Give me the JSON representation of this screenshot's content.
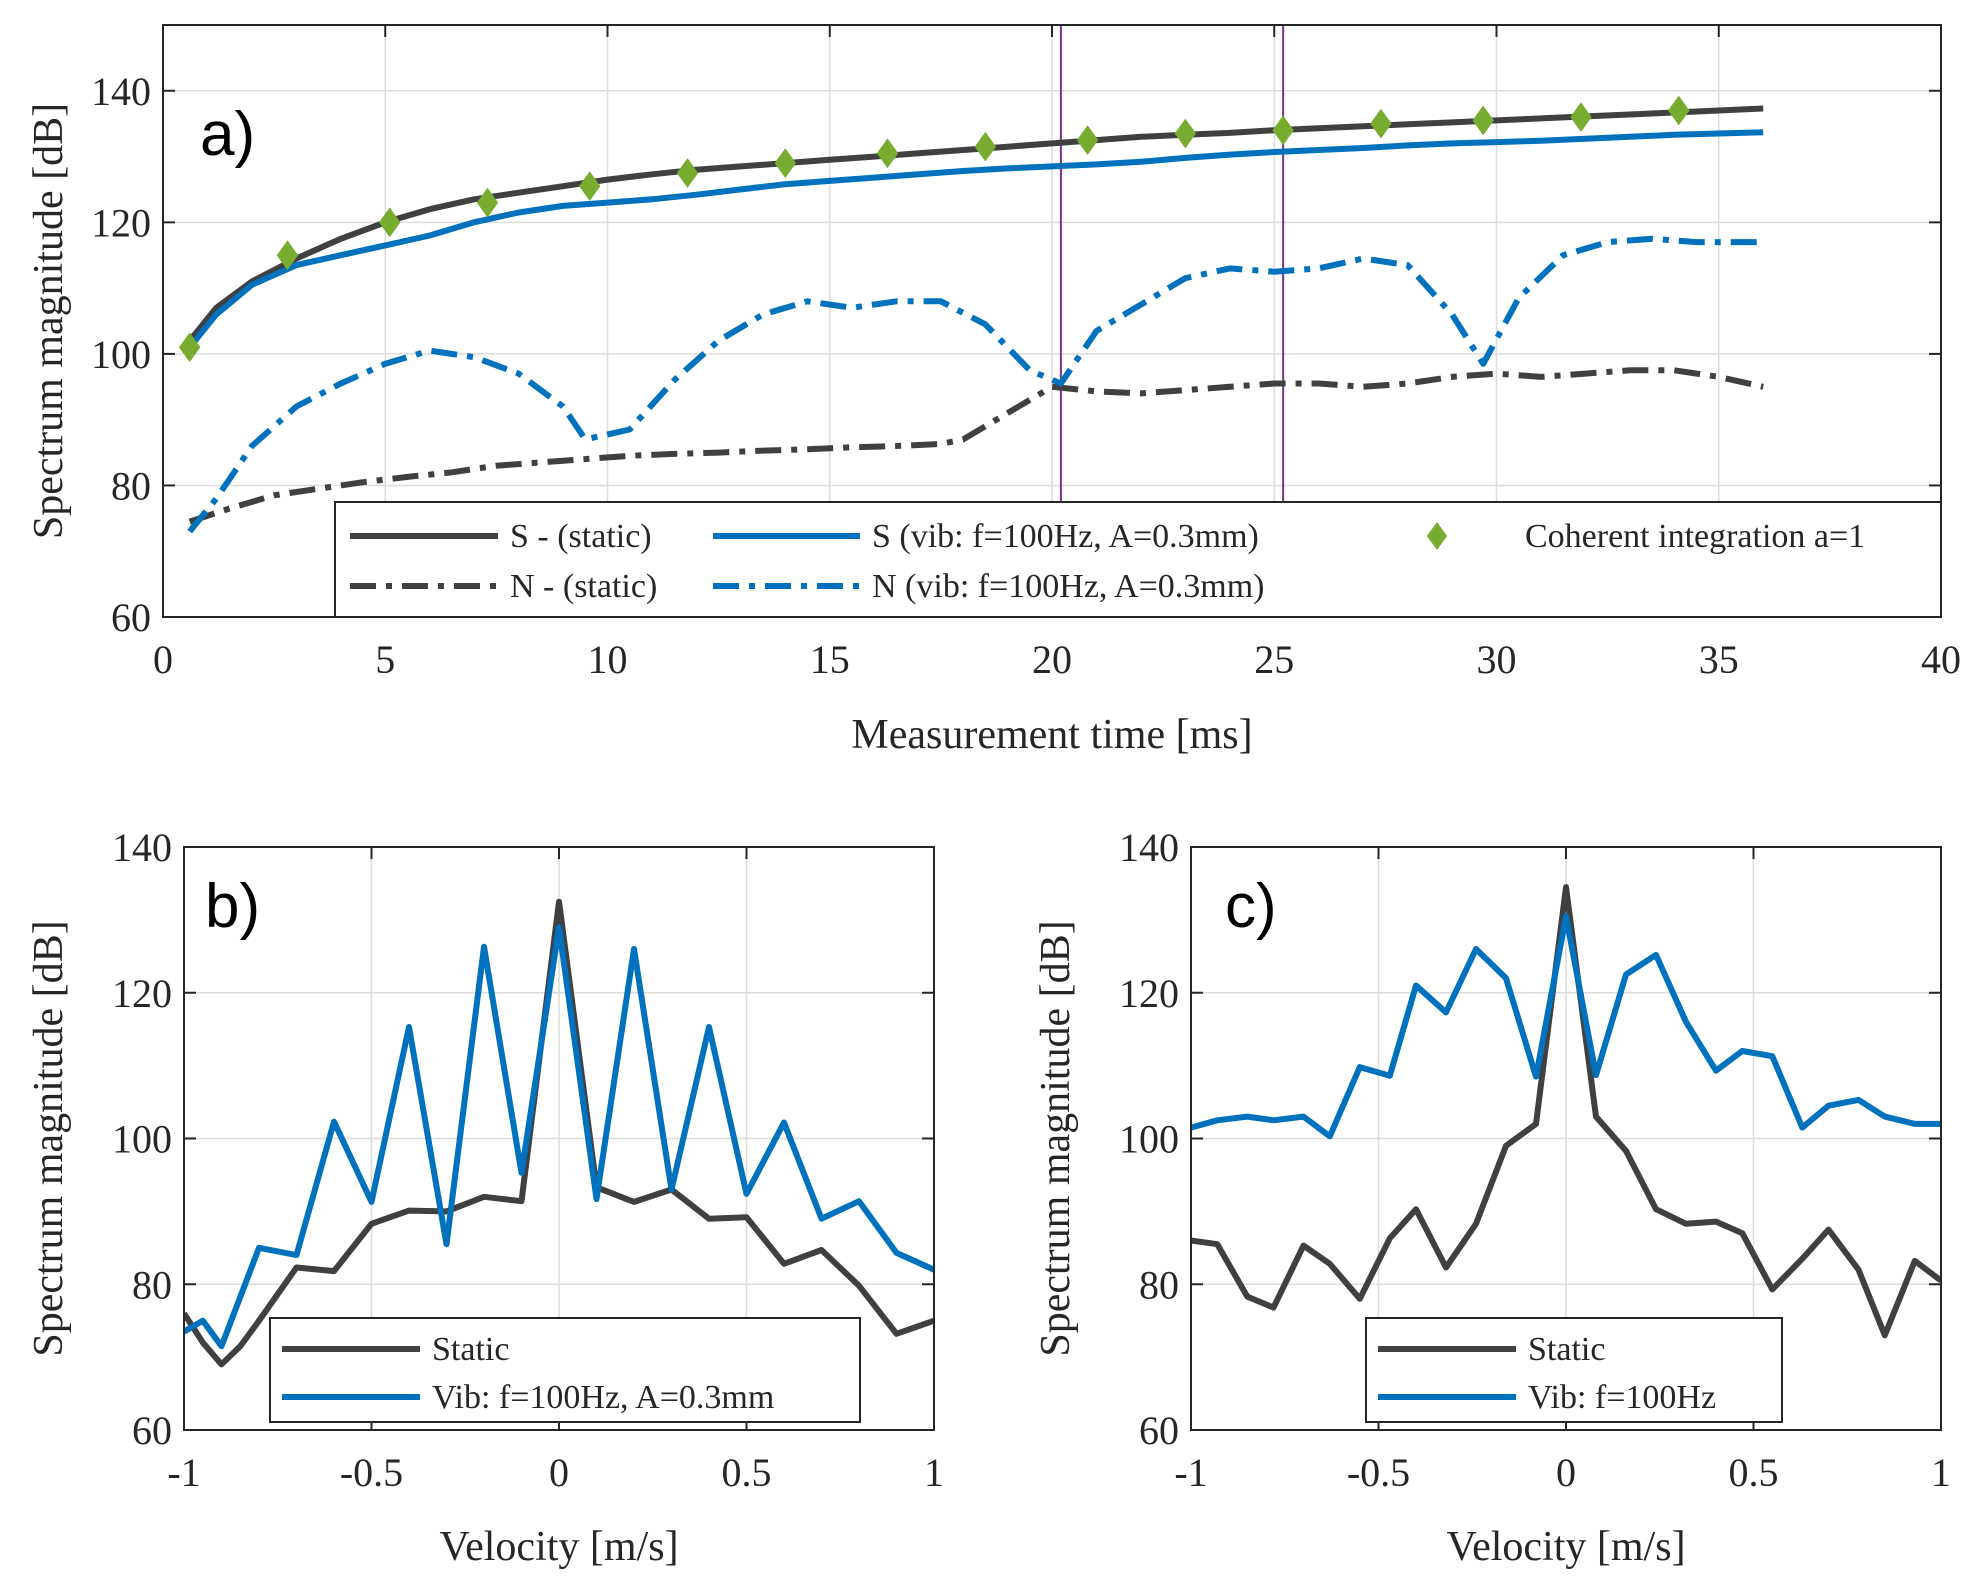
{
  "colors": {
    "static": "#404040",
    "vib": "#0072BD",
    "coherent": "#77AC30",
    "marker_lines": "#7E2F8E",
    "axis": "#262626",
    "grid": "#dcdcdc"
  },
  "chart_data": [
    {
      "id": "a",
      "type": "line",
      "panel_label": "a)",
      "xlabel": "Measurement time [ms]",
      "ylabel": "Spectrum magnitude [dB]",
      "xlim": [
        0,
        40
      ],
      "ylim": [
        60,
        150
      ],
      "xticks": [
        0,
        5,
        10,
        15,
        20,
        25,
        30,
        35,
        40
      ],
      "yticks": [
        60,
        80,
        100,
        120,
        140
      ],
      "xtick_labels": [
        "0",
        "5",
        "10",
        "15",
        "20",
        "25",
        "30",
        "35",
        "40"
      ],
      "ytick_labels": [
        "60",
        "80",
        "100",
        "120",
        "140"
      ],
      "grid": true,
      "legend_position": "bottom",
      "vlines": [
        20.2,
        25.2
      ],
      "series": [
        {
          "name": "S - (static)",
          "style": "solid",
          "color": "#404040",
          "x": [
            0.6,
            1.2,
            2,
            3,
            4,
            5,
            6,
            7,
            8,
            9,
            10,
            11,
            12,
            13,
            14,
            15,
            16,
            17,
            18,
            19,
            20,
            21,
            22,
            23,
            24,
            25,
            26,
            27,
            28,
            29,
            30,
            31,
            32,
            33,
            34,
            35,
            36
          ],
          "y": [
            102,
            107,
            111,
            114.5,
            117.5,
            120,
            122,
            123.5,
            124.5,
            125.5,
            126.5,
            127.3,
            128,
            128.5,
            129,
            129.5,
            130,
            130.5,
            131,
            131.5,
            132,
            132.5,
            133,
            133.3,
            133.6,
            134,
            134.3,
            134.6,
            134.9,
            135.2,
            135.5,
            135.8,
            136.1,
            136.4,
            136.7,
            137,
            137.3
          ]
        },
        {
          "name": "S (vib: f=100Hz, A=0.3mm)",
          "style": "solid",
          "color": "#0072BD",
          "x": [
            0.6,
            1.2,
            2,
            3,
            4,
            5,
            6,
            7,
            8,
            9,
            10,
            11,
            12,
            13,
            14,
            15,
            16,
            17,
            18,
            19,
            20,
            21,
            22,
            23,
            24,
            25,
            26,
            27,
            28,
            29,
            30,
            31,
            32,
            33,
            34,
            35,
            36
          ],
          "y": [
            101,
            106,
            110.5,
            113.5,
            115,
            116.5,
            118,
            120,
            121.5,
            122.5,
            123,
            123.5,
            124.2,
            125,
            125.8,
            126.3,
            126.8,
            127.3,
            127.8,
            128.2,
            128.5,
            128.8,
            129.2,
            129.8,
            130.3,
            130.7,
            131,
            131.3,
            131.7,
            132,
            132.2,
            132.4,
            132.7,
            133,
            133.3,
            133.5,
            133.7
          ]
        },
        {
          "name": "N - (static)",
          "style": "dashdot",
          "color": "#404040",
          "x": [
            0.6,
            1.5,
            2.5,
            3.5,
            4.5,
            5.5,
            6.5,
            7.5,
            8.5,
            9.5,
            10.5,
            11.5,
            12.5,
            13.5,
            14.5,
            15.5,
            16.5,
            17.5,
            18,
            19,
            20,
            21,
            22,
            23,
            24,
            25,
            26,
            27,
            28,
            29,
            30,
            31,
            32,
            33,
            34,
            35,
            36
          ],
          "y": [
            74.5,
            76.5,
            78.5,
            79.5,
            80.5,
            81.3,
            82,
            83,
            83.5,
            84,
            84.5,
            84.8,
            85,
            85.3,
            85.5,
            85.8,
            86,
            86.3,
            87,
            91,
            95,
            94.3,
            94,
            94.5,
            95,
            95.5,
            95.5,
            95,
            95.5,
            96.5,
            97,
            96.5,
            97,
            97.5,
            97.5,
            96.5,
            95
          ]
        },
        {
          "name": "N (vib: f=100Hz, A=0.3mm)",
          "style": "dashdot",
          "color": "#0072BD",
          "x": [
            0.6,
            1.2,
            2,
            3,
            4,
            5,
            6,
            7,
            8,
            9,
            9.5,
            10.5,
            11.5,
            12.5,
            13.5,
            14.5,
            15.5,
            16.5,
            17.5,
            18.5,
            19.5,
            20.2,
            21,
            22,
            23,
            24,
            25,
            26,
            27,
            28,
            29,
            29.7,
            30.5,
            31.5,
            32.5,
            33.5,
            34.5,
            35.5,
            36
          ],
          "y": [
            73,
            78,
            86,
            92,
            95.5,
            98.5,
            100.5,
            99.5,
            97,
            92,
            87,
            88.5,
            96,
            102,
            106,
            108,
            107,
            108,
            108,
            104.5,
            97.5,
            95.5,
            103.5,
            107.5,
            111.5,
            113,
            112.5,
            113,
            114.5,
            113.5,
            106,
            98.5,
            108.5,
            115,
            117,
            117.5,
            117,
            117,
            117
          ]
        },
        {
          "name": "Coherent integration a=1",
          "style": "marker",
          "color": "#77AC30",
          "x": [
            0.6,
            2.8,
            5.1,
            7.3,
            9.6,
            11.8,
            14,
            16.3,
            18.5,
            20.8,
            23,
            25.2,
            27.4,
            29.7,
            31.9,
            34.1
          ],
          "y": [
            101,
            115,
            120,
            123,
            125.5,
            127.5,
            129,
            130.5,
            131.5,
            132.5,
            133.5,
            134,
            135,
            135.5,
            136,
            137
          ]
        }
      ]
    },
    {
      "id": "b",
      "type": "line",
      "panel_label": "b)",
      "xlabel": "Velocity [m/s]",
      "ylabel": "Spectrum magnitude [dB]",
      "xlim": [
        -1,
        1
      ],
      "ylim": [
        60,
        140
      ],
      "xticks": [
        -1,
        -0.5,
        0,
        0.5,
        1
      ],
      "yticks": [
        60,
        80,
        100,
        120,
        140
      ],
      "xtick_labels": [
        "-1",
        "-0.5",
        "0",
        "0.5",
        "1"
      ],
      "ytick_labels": [
        "60",
        "80",
        "100",
        "120",
        "140"
      ],
      "grid": true,
      "legend_position": "bottom-right",
      "series": [
        {
          "name": "Static",
          "style": "solid",
          "color": "#404040",
          "x": [
            -1,
            -0.95,
            -0.9,
            -0.85,
            -0.8,
            -0.7,
            -0.6,
            -0.5,
            -0.4,
            -0.3,
            -0.2,
            -0.1,
            0,
            0.1,
            0.2,
            0.3,
            0.4,
            0.5,
            0.6,
            0.7,
            0.8,
            0.9,
            1
          ],
          "y": [
            76,
            72,
            69,
            71.5,
            75,
            82.3,
            81.8,
            88.3,
            90.1,
            90,
            92,
            91.4,
            132.5,
            93.3,
            91.3,
            93,
            89,
            89.2,
            82.8,
            84.7,
            79.8,
            73.2,
            75
          ]
        },
        {
          "name": "Vib: f=100Hz, A=0.3mm",
          "style": "solid",
          "color": "#0072BD",
          "x": [
            -1,
            -0.95,
            -0.9,
            -0.8,
            -0.7,
            -0.6,
            -0.5,
            -0.4,
            -0.3,
            -0.2,
            -0.1,
            0,
            0.1,
            0.2,
            0.3,
            0.4,
            0.5,
            0.6,
            0.7,
            0.8,
            0.9,
            1
          ],
          "y": [
            73.5,
            75,
            71.5,
            85,
            84,
            102.3,
            91.3,
            115.3,
            85.5,
            126.3,
            95.3,
            129,
            91.7,
            126,
            93,
            115.3,
            92.4,
            102.2,
            89,
            91.4,
            84.3,
            82
          ]
        }
      ]
    },
    {
      "id": "c",
      "type": "line",
      "panel_label": "c)",
      "xlabel": "Velocity [m/s]",
      "ylabel": "Spectrum magnitude [dB]",
      "xlim": [
        -1,
        1
      ],
      "ylim": [
        60,
        140
      ],
      "xticks": [
        -1,
        -0.5,
        0,
        0.5,
        1
      ],
      "yticks": [
        60,
        80,
        100,
        120,
        140
      ],
      "xtick_labels": [
        "-1",
        "-0.5",
        "0",
        "0.5",
        "1"
      ],
      "ytick_labels": [
        "60",
        "80",
        "100",
        "120",
        "140"
      ],
      "grid": true,
      "legend_position": "bottom-center",
      "series": [
        {
          "name": "Static",
          "style": "solid",
          "color": "#404040",
          "x": [
            -1,
            -0.93,
            -0.85,
            -0.78,
            -0.7,
            -0.63,
            -0.55,
            -0.47,
            -0.4,
            -0.32,
            -0.24,
            -0.16,
            -0.08,
            0,
            0.08,
            0.16,
            0.24,
            0.32,
            0.4,
            0.47,
            0.55,
            0.63,
            0.7,
            0.78,
            0.85,
            0.93,
            1
          ],
          "y": [
            86,
            85.5,
            78.3,
            76.8,
            85.3,
            82.8,
            78,
            86.3,
            90.3,
            82.3,
            88.3,
            99,
            102,
            134.5,
            103,
            98.3,
            90.3,
            88.3,
            88.6,
            87,
            79.3,
            83.5,
            87.5,
            82,
            73,
            83.2,
            80.5
          ]
        },
        {
          "name": "Vib: f=100Hz",
          "style": "solid",
          "color": "#0072BD",
          "x": [
            -1,
            -0.93,
            -0.85,
            -0.78,
            -0.7,
            -0.63,
            -0.55,
            -0.47,
            -0.4,
            -0.32,
            -0.24,
            -0.16,
            -0.08,
            0,
            0.08,
            0.16,
            0.24,
            0.32,
            0.4,
            0.47,
            0.55,
            0.63,
            0.7,
            0.78,
            0.85,
            0.93,
            1
          ],
          "y": [
            101.5,
            102.5,
            103,
            102.5,
            103,
            100.3,
            109.8,
            108.6,
            121,
            117.3,
            126,
            122,
            108.5,
            130.5,
            108.7,
            122.5,
            125.2,
            116,
            109.3,
            112,
            111.3,
            101.5,
            104.5,
            105.3,
            103,
            102,
            102
          ]
        }
      ]
    }
  ]
}
